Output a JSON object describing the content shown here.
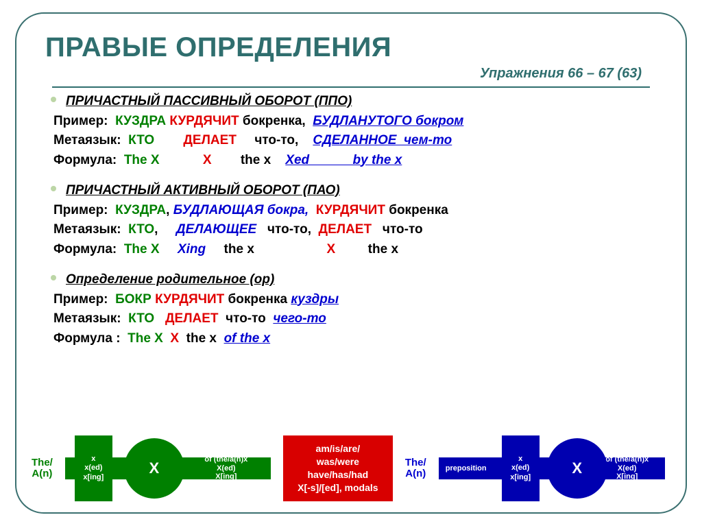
{
  "title": "ПРАВЫЕ ОПРЕДЕЛЕНИЯ",
  "subtitle": "Упражнения 66 – 67 (63)",
  "colors": {
    "frame": "#2f6e6e",
    "green": "#008000",
    "red": "#e00000",
    "blue": "#0000d0",
    "black": "#000000",
    "bullet": "#bcd6a6",
    "redbox": "#d80000",
    "white": "#ffffff"
  },
  "sections": [
    {
      "heading": "ПРИЧАСТНЫЙ ПАССИВНЫЙ ОБОРОТ (ППО)",
      "example_label": "Пример:",
      "example": [
        {
          "t": "КУЗДРА",
          "c": "gr"
        },
        {
          "t": " ",
          "c": "blk"
        },
        {
          "t": "КУРДЯЧИТ",
          "c": "rd"
        },
        {
          "t": " бокренка,  ",
          "c": "blk"
        },
        {
          "t": "БУДЛАНУТОГО бокром",
          "c": "bl it ul"
        }
      ],
      "meta_label": "Метаязык:",
      "meta": [
        {
          "t": "КТО",
          "c": "gr"
        },
        {
          "t": "        ",
          "c": "blk"
        },
        {
          "t": "ДЕЛАЕТ",
          "c": "rd"
        },
        {
          "t": "     что-то,    ",
          "c": "blk"
        },
        {
          "t": "СДЕЛАННОЕ  чем-то",
          "c": "bl it ul"
        }
      ],
      "formula_label": "Формула:",
      "formula": [
        {
          "t": "The X",
          "c": "gr"
        },
        {
          "t": "            ",
          "c": "blk"
        },
        {
          "t": "X",
          "c": "rd"
        },
        {
          "t": "        the x    ",
          "c": "blk"
        },
        {
          "t": "Xed            by the x",
          "c": "bl it ul"
        }
      ]
    },
    {
      "heading": "ПРИЧАСТНЫЙ АКТИВНЫЙ ОБОРОТ (ПАО)",
      "example_label": "Пример:",
      "example": [
        {
          "t": "КУЗДРА",
          "c": "gr"
        },
        {
          "t": ", ",
          "c": "blk"
        },
        {
          "t": "БУДЛАЮЩАЯ бокра,",
          "c": "bl it"
        },
        {
          "t": "  ",
          "c": "blk"
        },
        {
          "t": "КУРДЯЧИТ",
          "c": "rd"
        },
        {
          "t": " бокренка",
          "c": "blk"
        }
      ],
      "meta_label": "Метаязык:",
      "meta": [
        {
          "t": "КТО",
          "c": "gr"
        },
        {
          "t": ",     ",
          "c": "blk"
        },
        {
          "t": "ДЕЛАЮЩЕЕ",
          "c": "bl it"
        },
        {
          "t": "   что-то",
          "c": "blk"
        },
        {
          "t": ",",
          "c": "blk ul"
        },
        {
          "t": "  ",
          "c": "blk"
        },
        {
          "t": "ДЕЛАЕТ",
          "c": "rd"
        },
        {
          "t": "   что-то",
          "c": "blk"
        }
      ],
      "formula_label": "Формула:",
      "formula": [
        {
          "t": "The X",
          "c": "gr"
        },
        {
          "t": "     ",
          "c": "blk"
        },
        {
          "t": "Xing",
          "c": "bl it"
        },
        {
          "t": "     the x                    ",
          "c": "blk"
        },
        {
          "t": "X",
          "c": "rd"
        },
        {
          "t": "         the x",
          "c": "blk"
        }
      ]
    },
    {
      "heading": "Определение родительное (ор)",
      "heading_plain_italic": true,
      "example_label": "Пример:",
      "example": [
        {
          "t": "БОКР",
          "c": "gr"
        },
        {
          "t": " ",
          "c": "blk"
        },
        {
          "t": "КУРДЯЧИТ",
          "c": "rd"
        },
        {
          "t": " бокренка ",
          "c": "blk"
        },
        {
          "t": "куздры",
          "c": "bl it ul"
        }
      ],
      "meta_label": "Метаязык:",
      "meta": [
        {
          "t": "КТО",
          "c": "gr"
        },
        {
          "t": "   ",
          "c": "blk"
        },
        {
          "t": "ДЕЛАЕТ",
          "c": "rd"
        },
        {
          "t": "  что-то  ",
          "c": "blk"
        },
        {
          "t": "чего-то",
          "c": "bl it ul"
        }
      ],
      "formula_label": "Формула :",
      "formula": [
        {
          "t": "The X",
          "c": "gr"
        },
        {
          "t": "  ",
          "c": "blk"
        },
        {
          "t": "X",
          "c": "rd"
        },
        {
          "t": "  the x  ",
          "c": "blk"
        },
        {
          "t": "of the x",
          "c": "bl it ul"
        }
      ]
    }
  ],
  "diagrams": {
    "side_label": "The/\nA(n)",
    "green": {
      "left_tab": "x\nx(ed)\nx[ing]",
      "hub": "X",
      "right_seg": "of (the/a(n)x\nX(ed)\nX[ing]"
    },
    "red_box": "am/is/are/\nwas/were\nhave/has/had\nX[-s]/[ed], modals",
    "blue": {
      "prep": "preposition",
      "left_tab": "x\nx(ed)\nx[ing]",
      "hub": "X",
      "right_seg": "of (the/a(n)x\nX(ed)\nX[ing]"
    }
  }
}
